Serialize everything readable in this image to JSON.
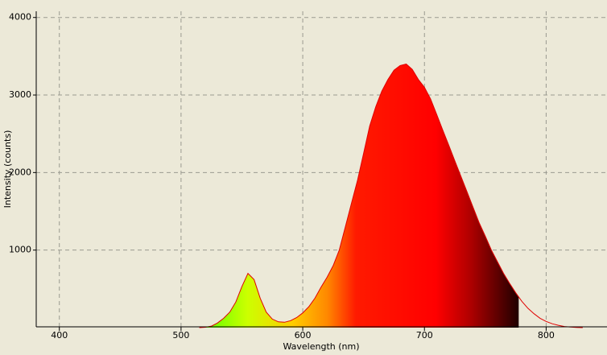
{
  "chart_data": {
    "type": "area",
    "x_label": "Wavelength (nm)",
    "y_label": "Intensity (counts)",
    "x": [
      515,
      520,
      525,
      530,
      535,
      540,
      545,
      550,
      555,
      560,
      565,
      570,
      575,
      580,
      585,
      590,
      595,
      600,
      605,
      610,
      615,
      620,
      625,
      630,
      635,
      640,
      645,
      650,
      655,
      660,
      665,
      670,
      675,
      680,
      685,
      690,
      695,
      700,
      705,
      710,
      715,
      720,
      725,
      730,
      735,
      740,
      745,
      750,
      755,
      760,
      765,
      770,
      775,
      780,
      785,
      790,
      795,
      800,
      805,
      810,
      815,
      820,
      825,
      830
    ],
    "series": [
      {
        "color": "#e00000",
        "values": [
          0,
          5,
          20,
          60,
          120,
          200,
          330,
          530,
          700,
          620,
          380,
          200,
          110,
          75,
          70,
          90,
          130,
          190,
          270,
          380,
          520,
          650,
          800,
          1000,
          1300,
          1600,
          1900,
          2250,
          2600,
          2850,
          3050,
          3200,
          3320,
          3380,
          3400,
          3330,
          3200,
          3100,
          2950,
          2750,
          2550,
          2350,
          2150,
          1950,
          1750,
          1550,
          1350,
          1180,
          1000,
          850,
          700,
          570,
          450,
          340,
          250,
          180,
          120,
          80,
          50,
          30,
          15,
          7,
          3,
          0
        ]
      }
    ],
    "xlim": [
      381,
      850
    ],
    "ylim": [
      0,
      4080
    ],
    "xticks": [
      400,
      500,
      600,
      700,
      800
    ],
    "yticks": [
      1000,
      2000,
      3000,
      4000
    ],
    "grid": true
  }
}
